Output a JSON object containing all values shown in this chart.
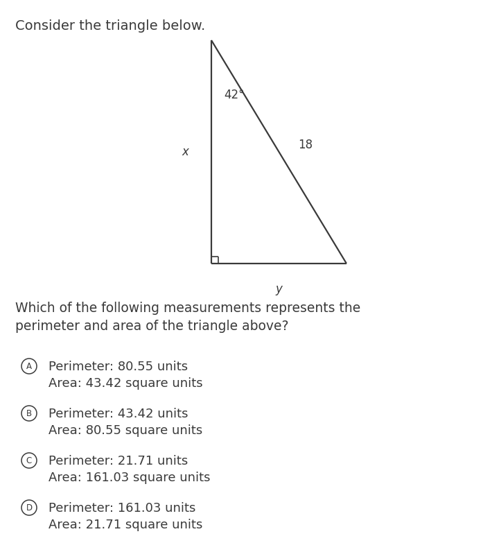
{
  "title": "Consider the triangle below.",
  "question_line1": "Which of the following measurements represents the",
  "question_line2": "perimeter and area of the triangle above?",
  "angle_label": "42°",
  "side_hyp_label": "18",
  "side_vert_label": "x",
  "side_horiz_label": "y",
  "options": [
    {
      "letter": "A",
      "line1": "Perimeter: 80.55 units",
      "line2": "Area: 43.42 square units"
    },
    {
      "letter": "B",
      "line1": "Perimeter: 43.42 units",
      "line2": "Area: 80.55 square units"
    },
    {
      "letter": "C",
      "line1": "Perimeter: 21.71 units",
      "line2": "Area: 161.03 square units"
    },
    {
      "letter": "D",
      "line1": "Perimeter: 161.03 units",
      "line2": "Area: 21.71 square units"
    }
  ],
  "bg_color": "#ffffff",
  "text_color": "#3a3a3a",
  "triangle_color": "#3a3a3a",
  "fig_width": 6.97,
  "fig_height": 7.83,
  "dpi": 100
}
